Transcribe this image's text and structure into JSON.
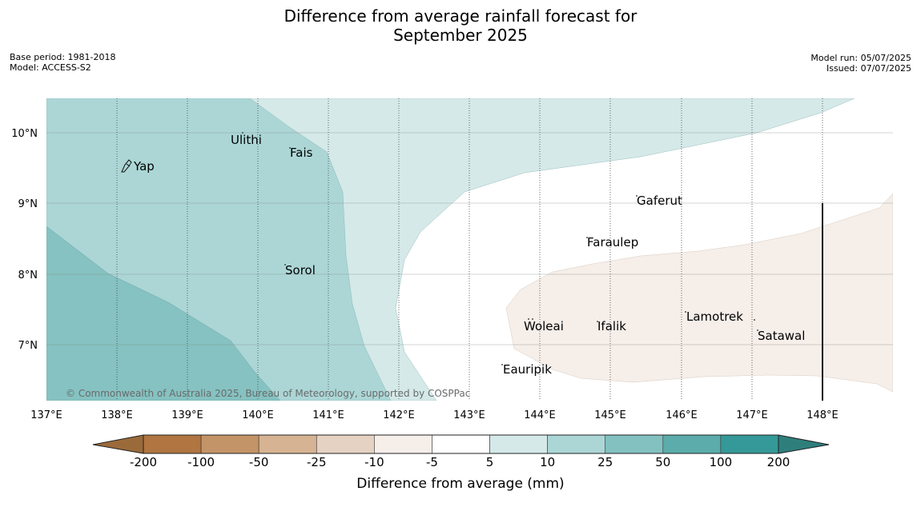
{
  "header": {
    "title_line1": "Difference from average rainfall forecast for",
    "title_line2": "September 2025",
    "base_period": "Base period: 1981-2018",
    "model": "Model: ACCESS-S2",
    "model_run": "Model run: 05/07/2025",
    "issued": "Issued: 07/07/2025"
  },
  "map": {
    "lon_ticks": [
      "137°E",
      "138°E",
      "139°E",
      "140°E",
      "141°E",
      "142°E",
      "143°E",
      "144°E",
      "145°E",
      "146°E",
      "147°E",
      "148°E"
    ],
    "lat_ticks": [
      "10°N",
      "9°N",
      "8°N",
      "7°N"
    ],
    "places": [
      {
        "name": "Yap"
      },
      {
        "name": "Ulithi"
      },
      {
        "name": "Fais"
      },
      {
        "name": "Gaferut"
      },
      {
        "name": "Faraulep"
      },
      {
        "name": "Sorol"
      },
      {
        "name": "Lamotrek"
      },
      {
        "name": "Woleai"
      },
      {
        "name": "Ifalik"
      },
      {
        "name": "Satawal"
      },
      {
        "name": "Eauripik"
      }
    ],
    "copyright": "© Commonwealth of Australia 2025, Bureau of Meteorology, supported by COSPPac"
  },
  "colorbar": {
    "label": "Difference from average (mm)",
    "ticks": [
      "-200",
      "-100",
      "-50",
      "-25",
      "-10",
      "-5",
      "5",
      "10",
      "25",
      "50",
      "100",
      "200"
    ],
    "colors": [
      "#9b6a3a",
      "#b07540",
      "#c39467",
      "#d6b393",
      "#e6d2c2",
      "#f5eee9",
      "#ffffff",
      "#d5e9e9",
      "#acd6d6",
      "#83c1c0",
      "#5bacab",
      "#349998",
      "#2e7f7c"
    ]
  }
}
